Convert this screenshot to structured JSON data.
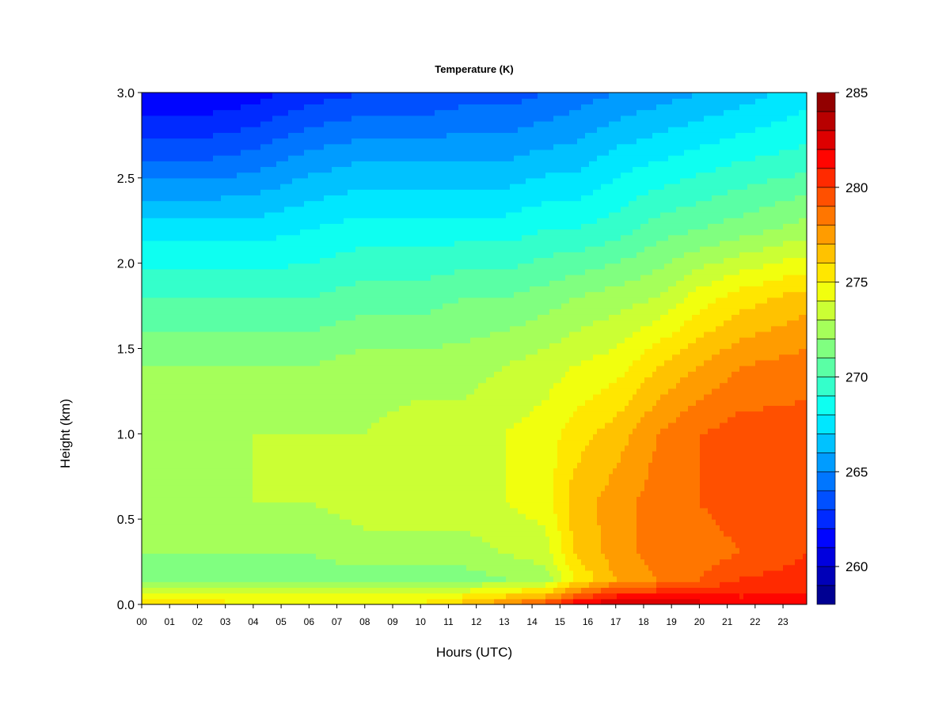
{
  "chart_data": {
    "type": "heatmap",
    "title": "Temperature (K)",
    "xlabel": "Hours (UTC)",
    "ylabel": "Height (km)",
    "x_ticks": [
      "00",
      "01",
      "02",
      "03",
      "04",
      "05",
      "06",
      "07",
      "08",
      "09",
      "10",
      "11",
      "12",
      "13",
      "14",
      "15",
      "16",
      "17",
      "18",
      "19",
      "20",
      "21",
      "22",
      "23"
    ],
    "xlim": [
      0,
      23.85
    ],
    "y_ticks": [
      "0.0",
      "0.5",
      "1.0",
      "1.5",
      "2.0",
      "2.5",
      "3.0"
    ],
    "ylim": [
      0,
      3.0
    ],
    "colorbar": {
      "label_values": [
        260,
        265,
        270,
        275,
        280,
        285
      ],
      "range": [
        258,
        285
      ],
      "step": 1
    },
    "x_hours": [
      0,
      2,
      4,
      6,
      8,
      10,
      11.5,
      13,
      14.5,
      15.5,
      17,
      18.5,
      20,
      21.5,
      23.85
    ],
    "y_km": [
      0,
      0.05,
      0.15,
      0.3,
      0.6,
      1.0,
      1.4,
      1.8,
      2.2,
      2.6,
      3.0
    ],
    "temperature_K": [
      [
        275.5,
        274.5,
        271.5,
        272.0,
        272.5,
        272.5,
        272.0,
        270.0,
        267.5,
        264.0,
        261.0
      ],
      [
        275.5,
        274.5,
        271.5,
        272.0,
        272.5,
        272.5,
        272.0,
        270.0,
        267.5,
        264.0,
        261.0
      ],
      [
        275.0,
        274.5,
        271.5,
        272.0,
        273.0,
        273.0,
        272.0,
        270.0,
        267.5,
        264.5,
        261.5
      ],
      [
        275.0,
        274.5,
        271.5,
        272.0,
        273.0,
        273.0,
        272.0,
        270.0,
        268.0,
        265.5,
        262.5
      ],
      [
        275.0,
        274.5,
        271.5,
        272.5,
        273.5,
        273.0,
        272.5,
        270.5,
        268.5,
        266.0,
        263.0
      ],
      [
        275.0,
        274.5,
        271.0,
        272.5,
        273.5,
        273.5,
        272.5,
        270.5,
        268.5,
        266.0,
        263.0
      ],
      [
        276.5,
        275.0,
        271.5,
        272.5,
        273.5,
        273.5,
        272.5,
        271.0,
        268.5,
        266.0,
        263.5
      ],
      [
        278.0,
        276.0,
        272.0,
        273.0,
        274.0,
        274.0,
        273.0,
        271.0,
        268.5,
        266.0,
        263.5
      ],
      [
        280.0,
        277.0,
        272.5,
        273.5,
        274.5,
        274.5,
        273.5,
        271.5,
        269.0,
        266.5,
        264.0
      ],
      [
        282.0,
        279.0,
        275.0,
        276.0,
        276.5,
        275.5,
        274.0,
        272.0,
        269.0,
        266.5,
        264.5
      ],
      [
        283.5,
        281.0,
        277.0,
        277.5,
        277.5,
        276.5,
        274.5,
        272.5,
        269.5,
        267.5,
        265.0
      ],
      [
        283.0,
        281.0,
        278.0,
        278.5,
        278.5,
        278.0,
        276.0,
        273.0,
        270.5,
        268.0,
        265.5
      ],
      [
        282.5,
        281.0,
        279.0,
        278.5,
        279.0,
        279.0,
        277.0,
        274.5,
        271.0,
        268.5,
        266.0
      ],
      [
        282.0,
        281.0,
        280.0,
        279.0,
        279.5,
        279.5,
        278.0,
        275.5,
        271.5,
        269.0,
        266.5
      ],
      [
        281.5,
        281.0,
        280.5,
        280.0,
        279.5,
        279.5,
        278.5,
        276.5,
        272.5,
        269.5,
        267.5
      ]
    ]
  }
}
